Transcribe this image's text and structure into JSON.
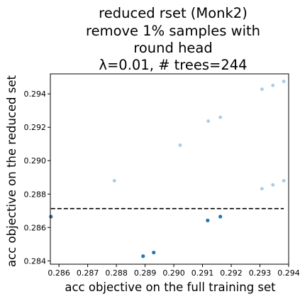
{
  "chart_data": {
    "type": "scatter",
    "title_lines": [
      "reduced rset (Monk2)",
      "remove 1% samples with",
      "round head",
      "λ=0.01, # trees=244"
    ],
    "xlabel": "acc objective on the full training set",
    "ylabel": "acc objective on the reduced set",
    "xlim": [
      0.2857,
      0.294
    ],
    "ylim": [
      0.2838,
      0.2952
    ],
    "xticks": [
      0.286,
      0.287,
      0.288,
      0.289,
      0.29,
      0.291,
      0.292,
      0.293,
      0.294
    ],
    "xtick_labels": [
      "0.286",
      "0.287",
      "0.288",
      "0.289",
      "0.290",
      "0.291",
      "0.292",
      "0.293",
      "0.294"
    ],
    "yticks": [
      0.284,
      0.286,
      0.288,
      0.29,
      0.292,
      0.294
    ],
    "ytick_labels": [
      "0.284",
      "0.286",
      "0.288",
      "0.290",
      "0.292",
      "0.294"
    ],
    "grid": false,
    "reference_line_y": 0.28713,
    "colors": {
      "dark_points": "#1f77b4",
      "light_points": "#a9cbe6",
      "line": "#000000"
    },
    "points_dark": [
      {
        "x": 0.28572,
        "y": 0.28665
      },
      {
        "x": 0.28893,
        "y": 0.28428
      },
      {
        "x": 0.2893,
        "y": 0.2845
      },
      {
        "x": 0.29118,
        "y": 0.28642
      },
      {
        "x": 0.29162,
        "y": 0.28665
      }
    ],
    "points_light": [
      {
        "x": 0.28793,
        "y": 0.2888
      },
      {
        "x": 0.29022,
        "y": 0.29093
      },
      {
        "x": 0.2912,
        "y": 0.29237
      },
      {
        "x": 0.29162,
        "y": 0.2926
      },
      {
        "x": 0.29307,
        "y": 0.29428
      },
      {
        "x": 0.29345,
        "y": 0.29451
      },
      {
        "x": 0.29383,
        "y": 0.29475
      },
      {
        "x": 0.29307,
        "y": 0.28832
      },
      {
        "x": 0.29345,
        "y": 0.28855
      },
      {
        "x": 0.29383,
        "y": 0.2888
      }
    ]
  }
}
